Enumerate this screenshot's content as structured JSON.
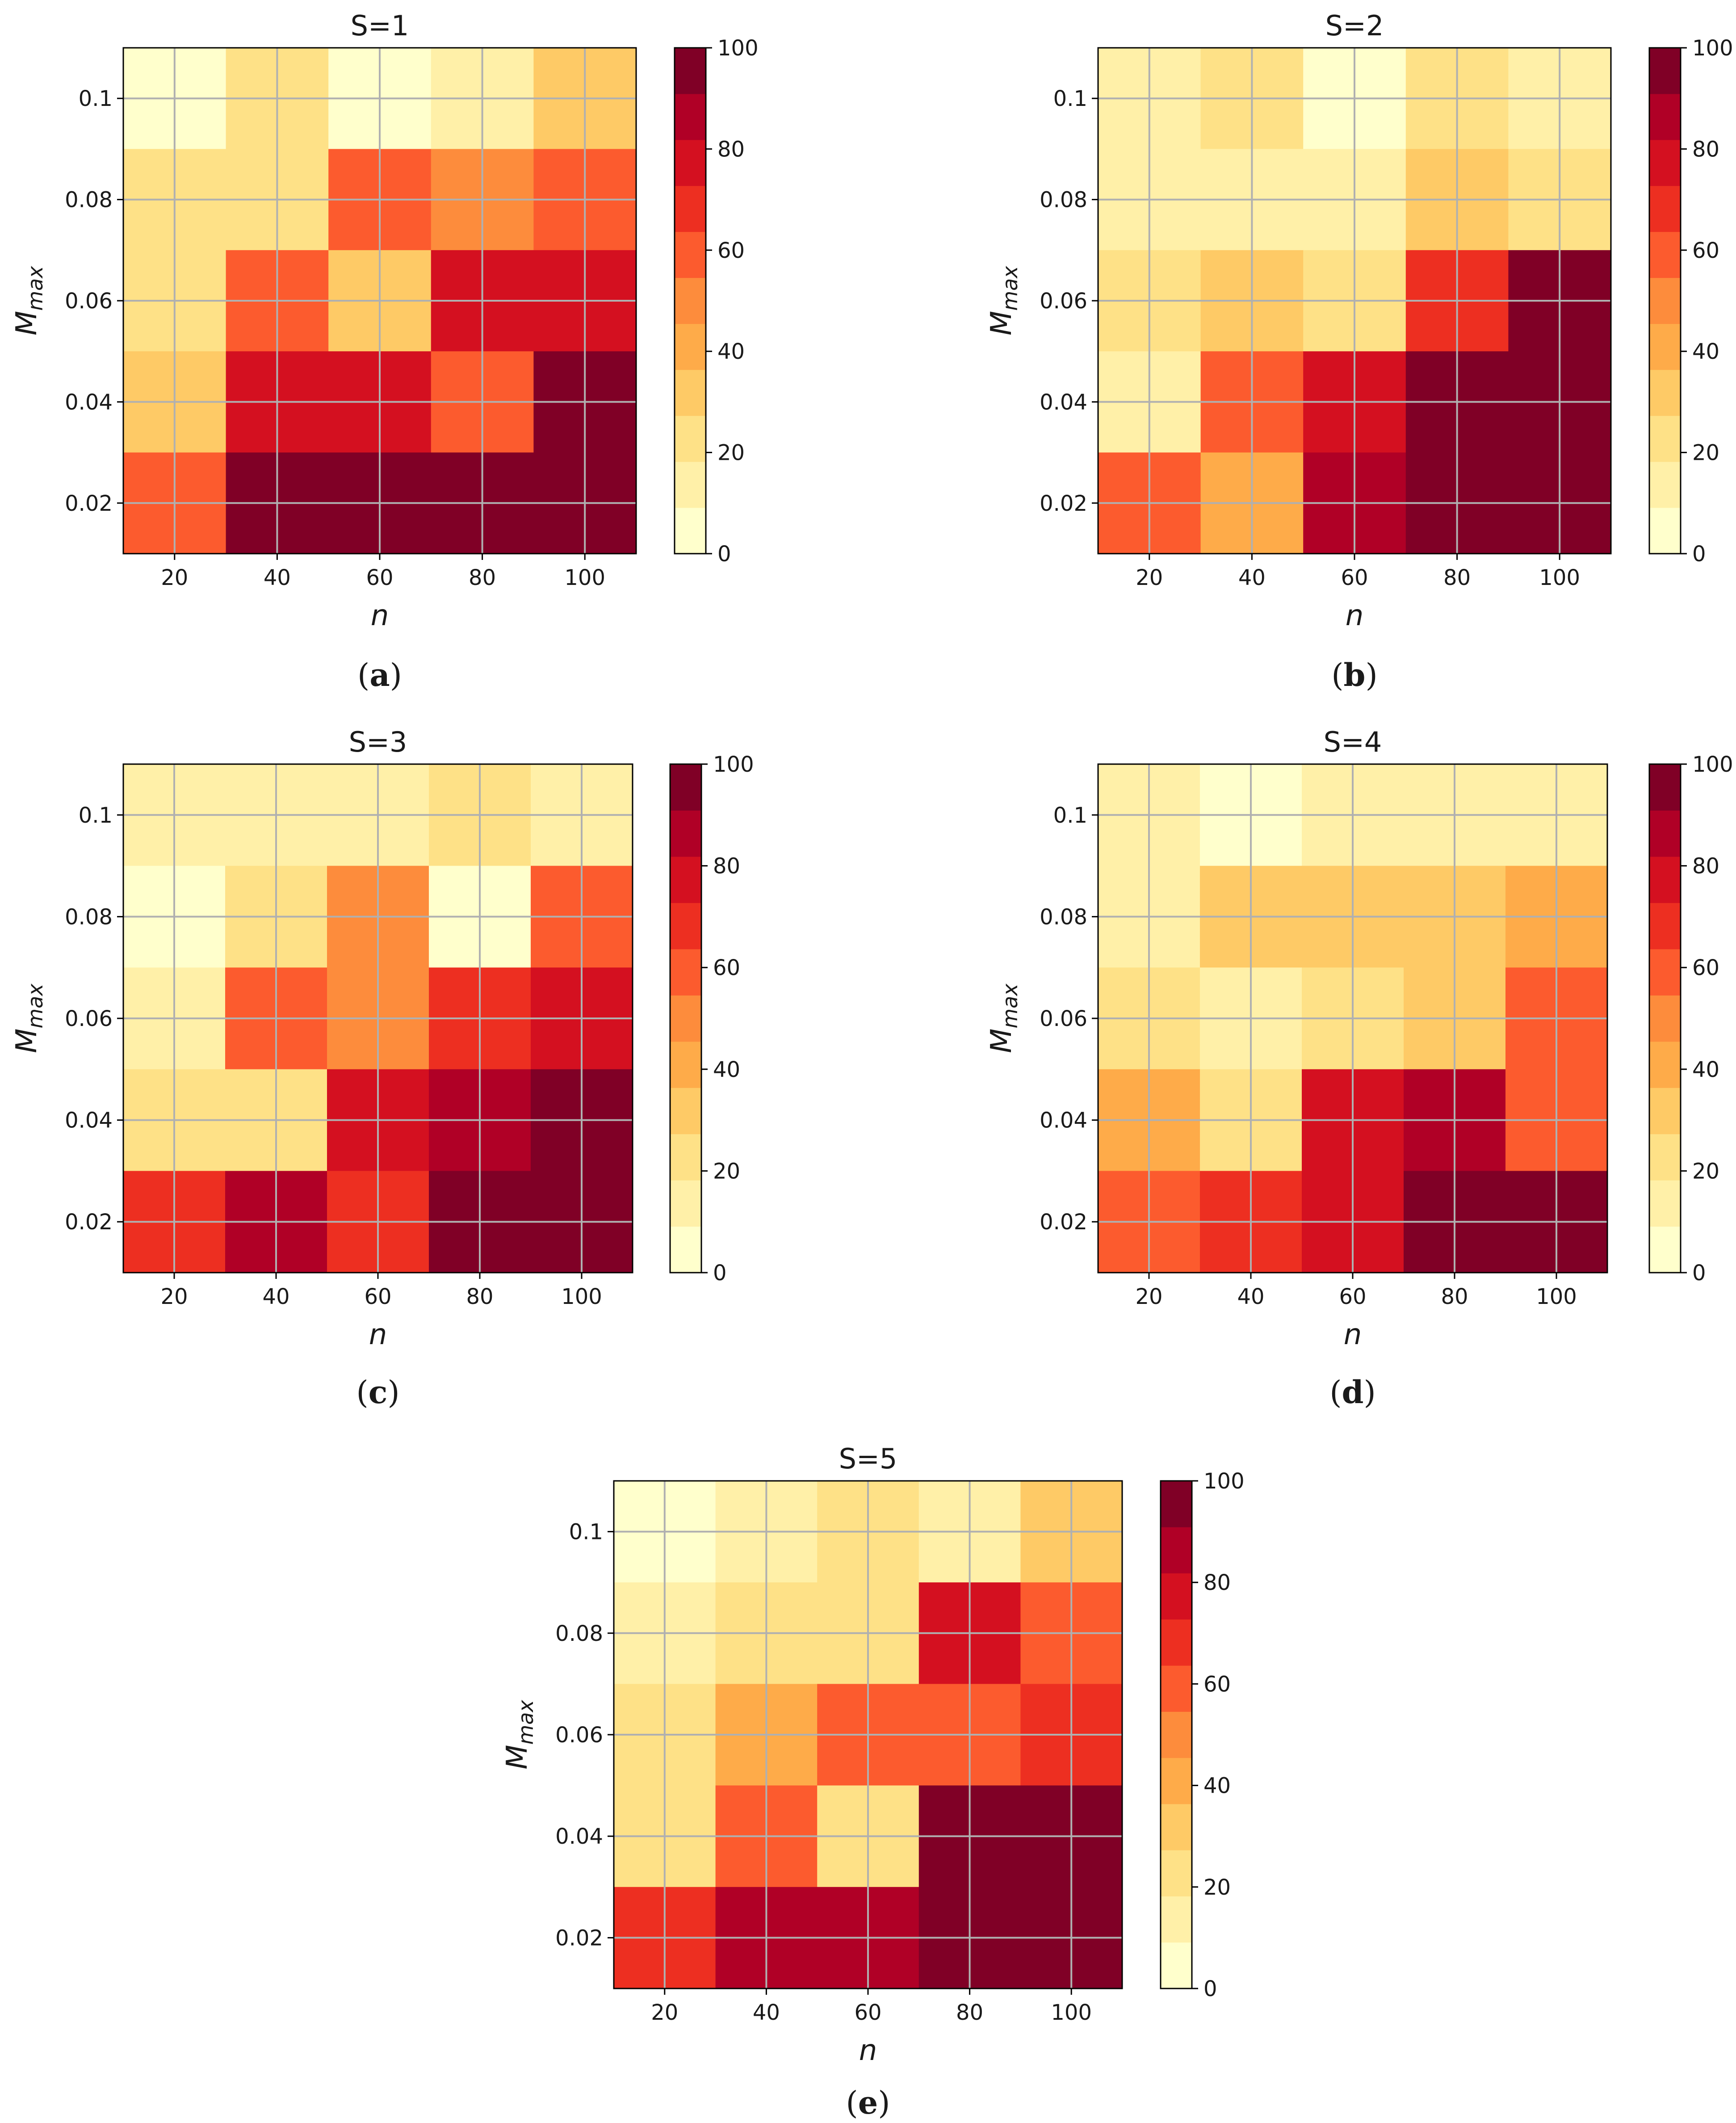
{
  "chart_data": [
    {
      "type": "heatmap",
      "panel": "a",
      "title": "S=1",
      "xlabel": "n",
      "ylabel": "M",
      "ylabel_subscript": "max",
      "xticks": [
        "20",
        "40",
        "60",
        "80",
        "100"
      ],
      "yticks": [
        "0.1",
        "0.08",
        "0.06",
        "0.04",
        "0.02"
      ],
      "colorbar_ticks": [
        "0",
        "20",
        "40",
        "60",
        "80",
        "100"
      ],
      "colorbar_range": [
        0,
        100
      ],
      "values": [
        [
          5,
          20,
          5,
          15,
          30
        ],
        [
          25,
          25,
          60,
          50,
          60
        ],
        [
          25,
          60,
          35,
          75,
          75
        ],
        [
          35,
          75,
          75,
          60,
          95
        ],
        [
          60,
          95,
          95,
          95,
          95
        ]
      ]
    },
    {
      "type": "heatmap",
      "panel": "b",
      "title": "S=2",
      "xlabel": "n",
      "ylabel": "M",
      "ylabel_subscript": "max",
      "xticks": [
        "20",
        "40",
        "60",
        "80",
        "100"
      ],
      "yticks": [
        "0.1",
        "0.08",
        "0.06",
        "0.04",
        "0.02"
      ],
      "colorbar_ticks": [
        "0",
        "20",
        "40",
        "60",
        "80",
        "100"
      ],
      "colorbar_range": [
        0,
        100
      ],
      "values": [
        [
          15,
          25,
          5,
          25,
          15
        ],
        [
          15,
          15,
          15,
          35,
          25
        ],
        [
          25,
          35,
          25,
          65,
          95
        ],
        [
          15,
          60,
          75,
          95,
          95
        ],
        [
          60,
          45,
          85,
          95,
          95
        ]
      ]
    },
    {
      "type": "heatmap",
      "panel": "c",
      "title": "S=3",
      "xlabel": "n",
      "ylabel": "M",
      "ylabel_subscript": "max",
      "xticks": [
        "20",
        "40",
        "60",
        "80",
        "100"
      ],
      "yticks": [
        "0.1",
        "0.08",
        "0.06",
        "0.04",
        "0.02"
      ],
      "colorbar_ticks": [
        "0",
        "20",
        "40",
        "60",
        "80",
        "100"
      ],
      "colorbar_range": [
        0,
        100
      ],
      "values": [
        [
          15,
          15,
          15,
          25,
          15
        ],
        [
          5,
          25,
          50,
          5,
          60
        ],
        [
          15,
          60,
          50,
          65,
          75
        ],
        [
          25,
          25,
          75,
          85,
          95
        ],
        [
          65,
          85,
          65,
          95,
          95
        ]
      ]
    },
    {
      "type": "heatmap",
      "panel": "d",
      "title": "S=4",
      "xlabel": "n",
      "ylabel": "M",
      "ylabel_subscript": "max",
      "xticks": [
        "20",
        "40",
        "60",
        "80",
        "100"
      ],
      "yticks": [
        "0.1",
        "0.08",
        "0.06",
        "0.04",
        "0.02"
      ],
      "colorbar_ticks": [
        "0",
        "20",
        "40",
        "60",
        "80",
        "100"
      ],
      "colorbar_range": [
        0,
        100
      ],
      "values": [
        [
          15,
          5,
          15,
          15,
          15
        ],
        [
          15,
          35,
          35,
          35,
          45
        ],
        [
          25,
          15,
          25,
          35,
          60
        ],
        [
          45,
          25,
          75,
          85,
          60
        ],
        [
          60,
          65,
          75,
          95,
          95
        ]
      ]
    },
    {
      "type": "heatmap",
      "panel": "e",
      "title": "S=5",
      "xlabel": "n",
      "ylabel": "M",
      "ylabel_subscript": "max",
      "xticks": [
        "20",
        "40",
        "60",
        "80",
        "100"
      ],
      "yticks": [
        "0.1",
        "0.08",
        "0.06",
        "0.04",
        "0.02"
      ],
      "colorbar_ticks": [
        "0",
        "20",
        "40",
        "60",
        "80",
        "100"
      ],
      "colorbar_range": [
        0,
        100
      ],
      "values": [
        [
          5,
          15,
          25,
          15,
          35
        ],
        [
          15,
          25,
          25,
          75,
          60
        ],
        [
          25,
          45,
          60,
          60,
          65
        ],
        [
          25,
          60,
          25,
          95,
          95
        ],
        [
          65,
          85,
          85,
          95,
          95
        ]
      ]
    }
  ],
  "colormap": {
    "name": "YlOrRd",
    "bins": [
      "#ffffcc",
      "#fff0a8",
      "#fee187",
      "#feca66",
      "#feab49",
      "#fd8c3c",
      "#fc5b2e",
      "#ed2f21",
      "#d41020",
      "#b00026",
      "#800026"
    ]
  },
  "panel_labels": [
    "a",
    "b",
    "c",
    "d",
    "e"
  ]
}
